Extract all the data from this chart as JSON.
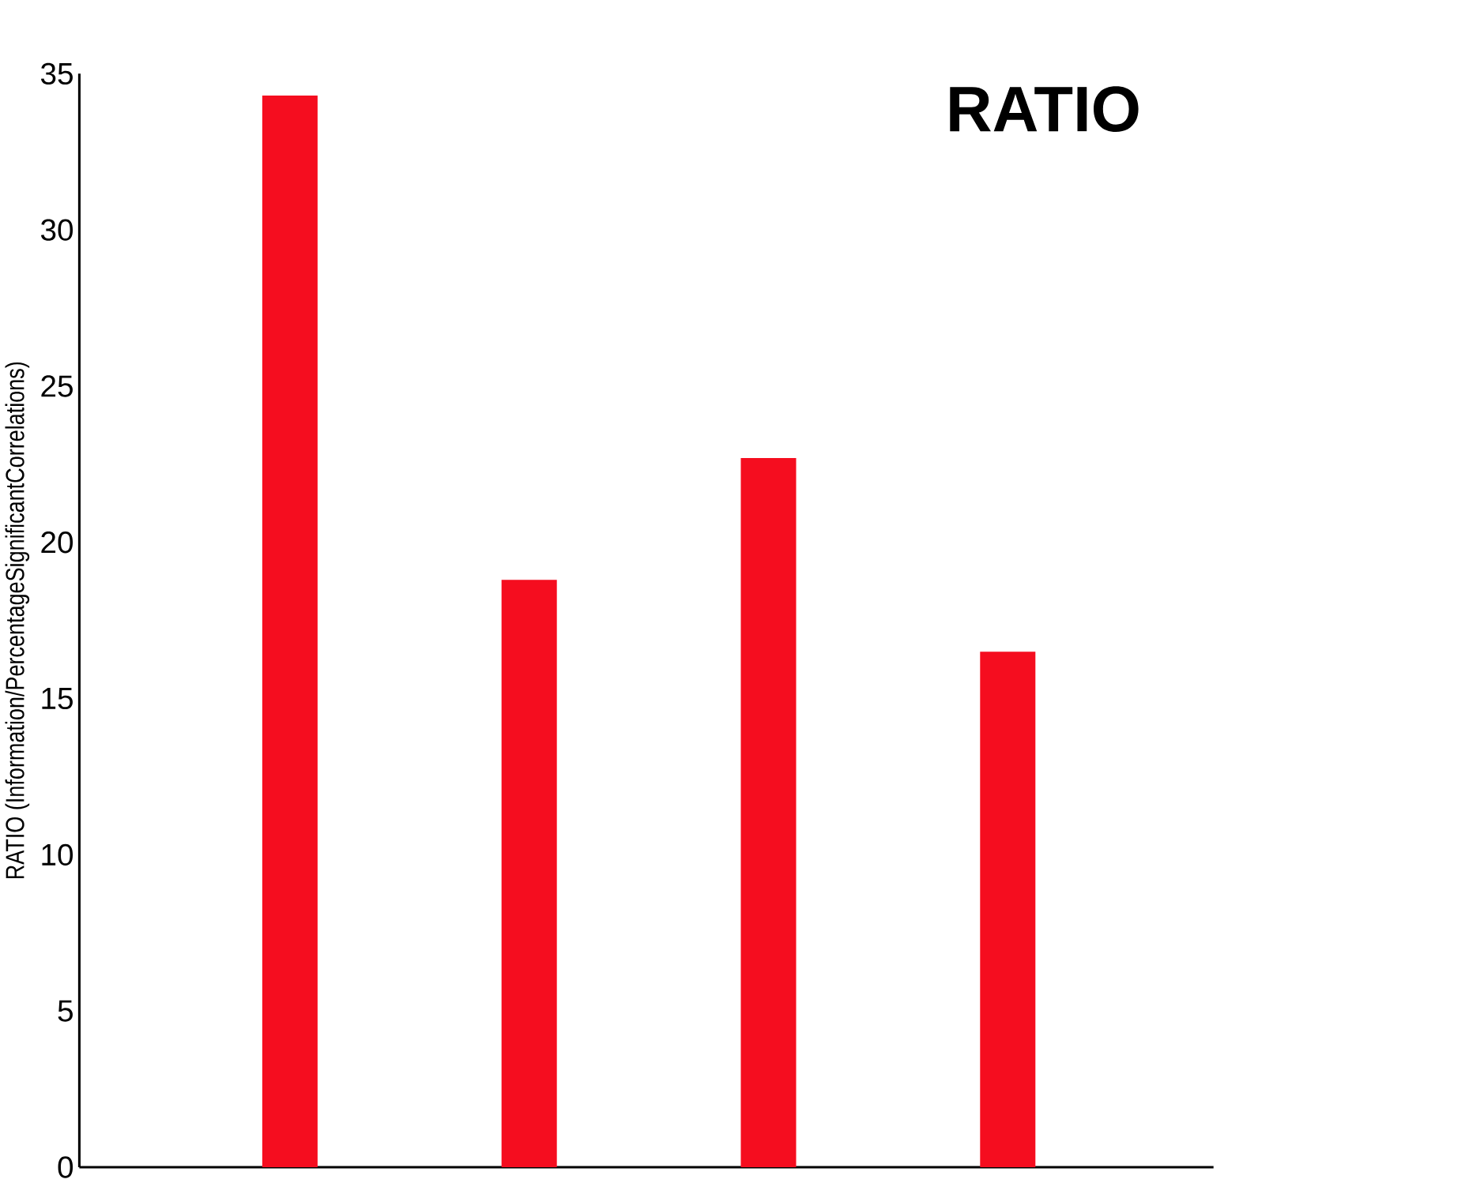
{
  "chart_data": {
    "type": "bar",
    "title": "RATIO",
    "ylabel": "RATIO (Information/PercentageSignificantCorrelations)",
    "categories": [
      null,
      null,
      null,
      null
    ],
    "values": [
      34.3,
      18.8,
      22.7,
      16.5
    ],
    "color": "#f50d1f",
    "ylim": [
      0,
      35
    ],
    "yticks": [
      0,
      5,
      10,
      15,
      20,
      25,
      30,
      35
    ],
    "tick_labels": "y"
  }
}
